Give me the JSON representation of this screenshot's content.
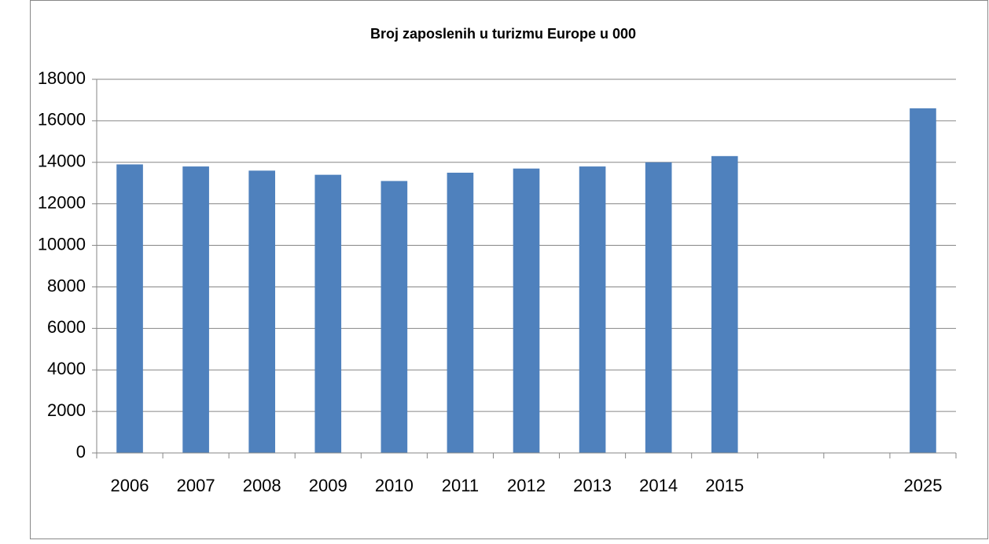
{
  "chart_data": {
    "type": "bar",
    "title": "Broj zaposlenih u turizmu Europe u 000",
    "categories": [
      "2006",
      "2007",
      "2008",
      "2009",
      "2010",
      "2011",
      "2012",
      "2013",
      "2014",
      "2015",
      null,
      null,
      "2025"
    ],
    "values": [
      13900,
      13800,
      13600,
      13400,
      13100,
      13500,
      13700,
      13800,
      14000,
      14300,
      null,
      null,
      16600
    ],
    "color": "#4f81bd",
    "ylim": [
      0,
      18000
    ],
    "yticks": [
      0,
      2000,
      4000,
      6000,
      8000,
      10000,
      12000,
      14000,
      16000,
      18000
    ],
    "grid": true
  }
}
